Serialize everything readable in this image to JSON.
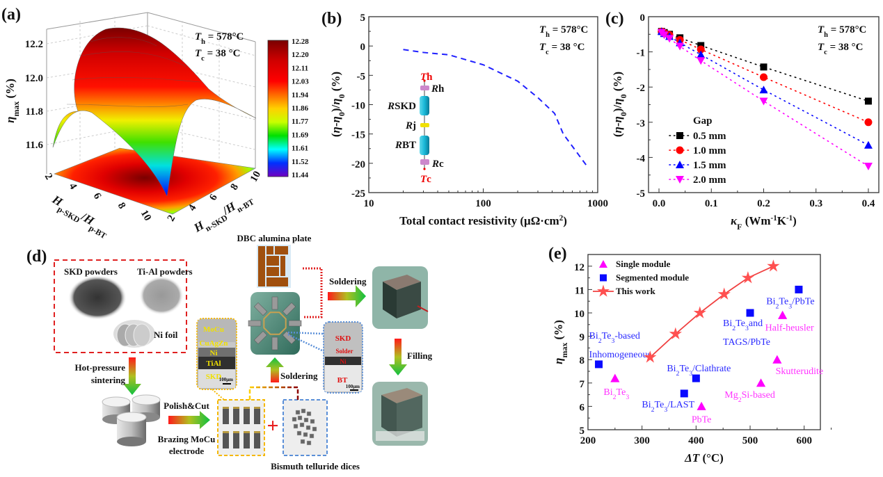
{
  "panels": {
    "a": {
      "label": "(a)",
      "th": [
        [
          "T",
          "i"
        ],
        [
          "h",
          "sub"
        ],
        [
          " = 578°C",
          ""
        ]
      ],
      "tc": [
        [
          "T",
          "i"
        ],
        [
          "c",
          "sub"
        ],
        [
          " = 38 °C",
          ""
        ]
      ],
      "zlabel": [
        [
          "η",
          "i"
        ],
        [
          "max",
          "sub"
        ],
        [
          " (%)",
          ""
        ]
      ],
      "zticks": [
        "12.2",
        "12.0",
        "11.8",
        "11.6"
      ],
      "xlabel": [
        [
          "H",
          "i"
        ],
        [
          "p-SKD",
          "sub"
        ],
        [
          "/",
          ""
        ],
        [
          "H",
          "i"
        ],
        [
          "p-BT",
          "sub"
        ]
      ],
      "ylabel": [
        [
          "H",
          "i"
        ],
        [
          "n-SKD",
          "sub"
        ],
        [
          "/",
          ""
        ],
        [
          "H",
          "i"
        ],
        [
          "n-BT",
          "sub"
        ]
      ],
      "xticks": [
        "2",
        "4",
        "6",
        "8",
        "10"
      ],
      "yticks": [
        "2",
        "4",
        "6",
        "8",
        "10"
      ],
      "colorbar": [
        "12.28",
        "12.20",
        "12.11",
        "12.03",
        "11.94",
        "11.86",
        "11.77",
        "11.69",
        "11.61",
        "11.52",
        "11.44"
      ],
      "colormap": [
        "#7a0000",
        "#c00000",
        "#ff0000",
        "#ff0000",
        "#ff6a00",
        "#ffd000",
        "#d8ff00",
        "#00e000",
        "#00ffff",
        "#0030ff",
        "#7000c0"
      ]
    },
    "b": {
      "label": "(b)",
      "th": [
        [
          "T",
          "i"
        ],
        [
          "h",
          "sub"
        ],
        [
          " = 578°C",
          ""
        ]
      ],
      "tc": [
        [
          "T",
          "i"
        ],
        [
          "c",
          "sub"
        ],
        [
          " = 38 °C",
          ""
        ]
      ],
      "circuit": {
        "th": [
          [
            "T",
            "i"
          ],
          [
            "h",
            ""
          ]
        ],
        "tc": [
          [
            "T",
            "i"
          ],
          [
            "c",
            ""
          ]
        ],
        "rh": [
          [
            "R",
            "i"
          ],
          [
            "h",
            ""
          ]
        ],
        "rskd": [
          [
            "R",
            "i"
          ],
          [
            "SKD",
            ""
          ]
        ],
        "rj": [
          [
            "R",
            "i"
          ],
          [
            "j",
            ""
          ]
        ],
        "rbt": [
          [
            "R",
            "i"
          ],
          [
            "BT",
            ""
          ]
        ],
        "rc": [
          [
            "R",
            "i"
          ],
          [
            "c",
            ""
          ]
        ]
      }
    },
    "c": {
      "label": "(c)",
      "th": [
        [
          "T",
          "i"
        ],
        [
          "h",
          "sub"
        ],
        [
          " = 578°C",
          ""
        ]
      ],
      "tc": [
        [
          "T",
          "i"
        ],
        [
          "c",
          "sub"
        ],
        [
          " = 38 °C",
          ""
        ]
      ],
      "legend_title": "Gap"
    },
    "d": {
      "label": "(d)",
      "skd_powders": "SKD powders",
      "tial_powders": "Ti-Al powders",
      "ni_foil": "Ni foil",
      "hot_pressure": "Hot-pressure",
      "sintering": "sintering",
      "polish_cut": "Polish&Cut",
      "brazing1": "Brazing MoCu",
      "brazing2": "electrode",
      "sem1_layers": [
        "MoCu",
        "CuAgZn",
        "Ni",
        "TiAl",
        "SKD"
      ],
      "sem1_scale": "100μm",
      "plus": "+",
      "dices": "Bismuth telluride dices",
      "soldering_up": "Soldering",
      "dbc": "DBC alumina plate",
      "sem2_layers": [
        "SKD",
        "Solder",
        "Ni",
        "BT"
      ],
      "sem2_scale": "100μm",
      "soldering_right": "Soldering",
      "filling": "Filling"
    },
    "e": {
      "label": "(e)"
    }
  },
  "chart_data": [
    {
      "panel": "b",
      "type": "line",
      "xlabel": [
        [
          "Total contact resistivity (μΩ·cm",
          ""
        ],
        [
          "2",
          "sup"
        ],
        [
          ")",
          ""
        ]
      ],
      "ylabel": [
        [
          "(",
          ""
        ],
        [
          "η",
          "i"
        ],
        [
          "-",
          ""
        ],
        [
          "η",
          "i"
        ],
        [
          "0",
          "sub"
        ],
        [
          ")/",
          ""
        ],
        [
          "η",
          "i"
        ],
        [
          "0",
          "sub"
        ],
        [
          " (%)",
          ""
        ]
      ],
      "xscale": "log",
      "xlim": [
        10,
        1000
      ],
      "ylim": [
        -25,
        5
      ],
      "xticks": [
        10,
        100,
        1000
      ],
      "yticks": [
        5,
        0,
        -5,
        -10,
        -15,
        -20,
        -25
      ],
      "line_style": "dashed",
      "color": "#1f1fff",
      "x": [
        20,
        30,
        50,
        100,
        200,
        300,
        420,
        500,
        800
      ],
      "y": [
        -0.6,
        -1.1,
        -1.5,
        -3.2,
        -6.0,
        -8.8,
        -11.5,
        -15.0,
        -20.4
      ]
    },
    {
      "panel": "c",
      "type": "scatter",
      "xlabel": [
        [
          "κ",
          "i"
        ],
        [
          "F",
          "sub"
        ],
        [
          " (Wm",
          ""
        ],
        [
          "-1",
          "sup"
        ],
        [
          "K",
          ""
        ],
        [
          "-1",
          "sup"
        ],
        [
          ")",
          ""
        ]
      ],
      "ylabel": [
        [
          "(",
          ""
        ],
        [
          "η",
          "i"
        ],
        [
          "-",
          ""
        ],
        [
          "η",
          "i"
        ],
        [
          "0",
          "sub"
        ],
        [
          ")/",
          ""
        ],
        [
          "η",
          "i"
        ],
        [
          "0",
          "sub"
        ],
        [
          " (%)",
          ""
        ]
      ],
      "xlim": [
        -0.02,
        0.42
      ],
      "ylim": [
        -5,
        0
      ],
      "xticks": [
        "0.0",
        "0.1",
        "0.2",
        "0.3",
        "0.4"
      ],
      "yticks": [
        "0",
        "-1",
        "-2",
        "-3",
        "-4",
        "-5"
      ],
      "x": [
        0.005,
        0.01,
        0.02,
        0.04,
        0.08,
        0.2,
        0.4
      ],
      "legend": "center-left",
      "series": [
        {
          "name": "0.5 mm",
          "marker": "square",
          "color": "#000000",
          "values": [
            -0.42,
            -0.45,
            -0.5,
            -0.6,
            -0.82,
            -1.43,
            -2.4
          ]
        },
        {
          "name": "1.0 mm",
          "marker": "circle",
          "color": "#ff0000",
          "values": [
            -0.42,
            -0.46,
            -0.52,
            -0.66,
            -0.93,
            -1.72,
            -3.0
          ]
        },
        {
          "name": "1.5 mm",
          "marker": "triangle-up",
          "color": "#0000ff",
          "values": [
            -0.42,
            -0.48,
            -0.56,
            -0.74,
            -1.08,
            -2.08,
            -3.65
          ]
        },
        {
          "name": "2.0 mm",
          "marker": "triangle-down",
          "color": "#ff00ff",
          "values": [
            -0.45,
            -0.52,
            -0.62,
            -0.84,
            -1.25,
            -2.4,
            -4.25
          ]
        }
      ]
    },
    {
      "panel": "e",
      "type": "scatter",
      "xlabel": [
        [
          "ΔT",
          "i"
        ],
        [
          " (°C)",
          ""
        ]
      ],
      "ylabel": [
        [
          "η",
          "i"
        ],
        [
          "max",
          "sub"
        ],
        [
          " (%)",
          ""
        ]
      ],
      "xlim": [
        200,
        630
      ],
      "ylim": [
        5,
        12.5
      ],
      "xticks": [
        200,
        300,
        400,
        500,
        600
      ],
      "yticks": [
        5,
        6,
        7,
        8,
        9,
        10,
        11,
        12
      ],
      "legend": "top-left",
      "series": [
        {
          "name": "Single module",
          "marker": "triangle-up",
          "color": "#ff00ff",
          "label_color": "#ff33ff",
          "points": [
            {
              "x": 250,
              "y": 7.2,
              "label": [
                [
                  [
                    "Bi",
                    ""
                  ],
                  [
                    "2",
                    "sub"
                  ],
                  [
                    "Te",
                    ""
                  ],
                  [
                    "3",
                    "sub"
                  ]
                ]
              ]
            },
            {
              "x": 410,
              "y": 6.0,
              "label": [
                [
                  [
                    "PbTe",
                    ""
                  ]
                ]
              ]
            },
            {
              "x": 520,
              "y": 7.0,
              "label": [
                [
                  [
                    "Mg",
                    ""
                  ],
                  [
                    "2",
                    "sub"
                  ],
                  [
                    "Si-based",
                    ""
                  ]
                ]
              ]
            },
            {
              "x": 550,
              "y": 8.0,
              "label": [
                [
                  [
                    "Skutterudite",
                    ""
                  ]
                ]
              ]
            },
            {
              "x": 560,
              "y": 9.9,
              "label": [
                [
                  [
                    "Half-heusler",
                    ""
                  ]
                ]
              ]
            }
          ]
        },
        {
          "name": "Segmented module",
          "marker": "square",
          "color": "#0a0aff",
          "label_color": "#2a2aff",
          "points": [
            {
              "x": 220,
              "y": 7.8,
              "label": [
                [
                  [
                    "Bi",
                    ""
                  ],
                  [
                    "2",
                    "sub"
                  ],
                  [
                    "Te",
                    ""
                  ],
                  [
                    "3",
                    "sub"
                  ],
                  [
                    "-based",
                    ""
                  ]
                ],
                [
                  [
                    "Inhomogeneous",
                    ""
                  ]
                ]
              ]
            },
            {
              "x": 378,
              "y": 6.55,
              "label": [
                [
                  [
                    "Bi",
                    ""
                  ],
                  [
                    "2",
                    "sub"
                  ],
                  [
                    "Te",
                    ""
                  ],
                  [
                    "3",
                    "sub"
                  ],
                  [
                    "/LAST",
                    ""
                  ]
                ]
              ]
            },
            {
              "x": 400,
              "y": 7.2,
              "label": [
                [
                  [
                    "Bi",
                    ""
                  ],
                  [
                    "2",
                    "sub"
                  ],
                  [
                    "Te",
                    ""
                  ],
                  [
                    "3",
                    "sub"
                  ],
                  [
                    "/Clathrate",
                    ""
                  ]
                ]
              ]
            },
            {
              "x": 500,
              "y": 10.0,
              "label": [
                [
                  [
                    "Bi",
                    ""
                  ],
                  [
                    "2",
                    "sub"
                  ],
                  [
                    "Te",
                    ""
                  ],
                  [
                    "3",
                    "sub"
                  ],
                  [
                    "and",
                    ""
                  ]
                ],
                [
                  [
                    "TAGS/PbTe",
                    ""
                  ]
                ]
              ]
            },
            {
              "x": 590,
              "y": 11.0,
              "label": [
                [
                  [
                    "Bi",
                    ""
                  ],
                  [
                    "2",
                    "sub"
                  ],
                  [
                    "Te",
                    ""
                  ],
                  [
                    "3",
                    "sub"
                  ],
                  [
                    "/PbTe",
                    ""
                  ]
                ]
              ]
            }
          ]
        },
        {
          "name": "This work",
          "marker": "star",
          "color": "#ff5050",
          "line": true,
          "points": [
            {
              "x": 315,
              "y": 8.1
            },
            {
              "x": 362,
              "y": 9.1
            },
            {
              "x": 407,
              "y": 10.0
            },
            {
              "x": 452,
              "y": 10.8
            },
            {
              "x": 496,
              "y": 11.5
            },
            {
              "x": 543,
              "y": 12.0
            }
          ]
        }
      ]
    }
  ]
}
